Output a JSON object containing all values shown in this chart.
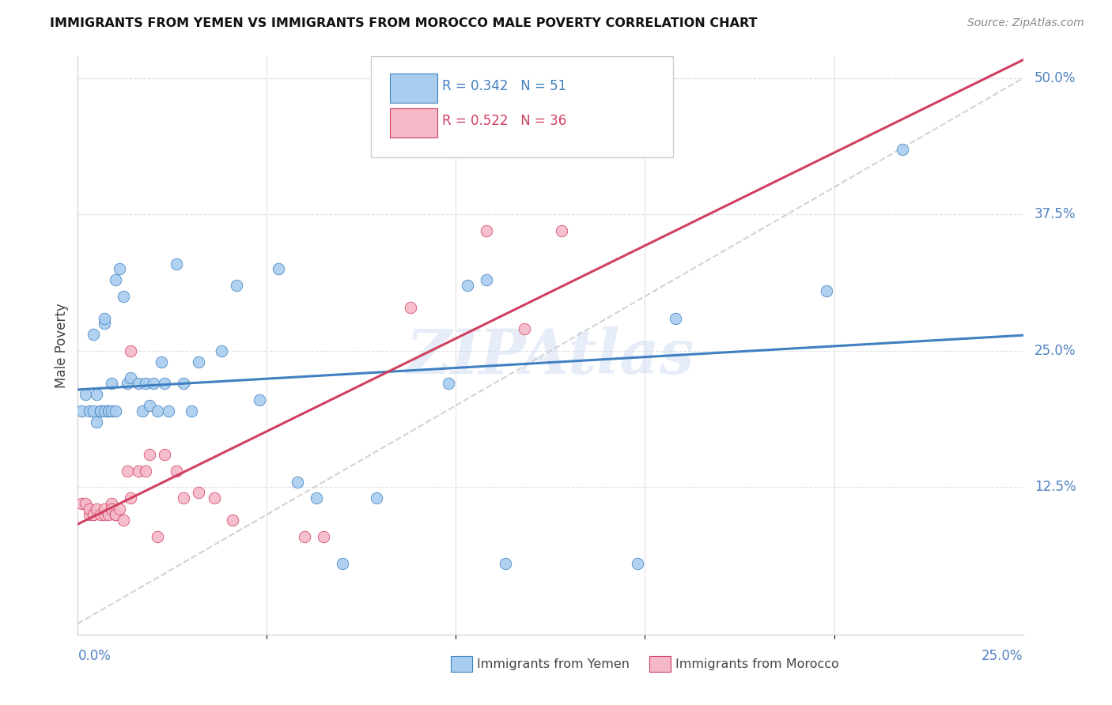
{
  "title": "IMMIGRANTS FROM YEMEN VS IMMIGRANTS FROM MOROCCO MALE POVERTY CORRELATION CHART",
  "source": "Source: ZipAtlas.com",
  "ylabel": "Male Poverty",
  "right_yticks": [
    "50.0%",
    "37.5%",
    "25.0%",
    "12.5%"
  ],
  "right_ytick_vals": [
    0.5,
    0.375,
    0.25,
    0.125
  ],
  "xlim": [
    0.0,
    0.25
  ],
  "ylim": [
    -0.01,
    0.52
  ],
  "legend_r_yemen": "R = 0.342",
  "legend_n_yemen": "N = 51",
  "legend_r_morocco": "R = 0.522",
  "legend_n_morocco": "N = 36",
  "watermark": "ZIPAtlas",
  "scatter_yemen": [
    [
      0.001,
      0.195
    ],
    [
      0.002,
      0.21
    ],
    [
      0.003,
      0.195
    ],
    [
      0.004,
      0.265
    ],
    [
      0.004,
      0.195
    ],
    [
      0.005,
      0.21
    ],
    [
      0.005,
      0.185
    ],
    [
      0.006,
      0.195
    ],
    [
      0.006,
      0.195
    ],
    [
      0.007,
      0.275
    ],
    [
      0.007,
      0.28
    ],
    [
      0.007,
      0.195
    ],
    [
      0.008,
      0.195
    ],
    [
      0.008,
      0.195
    ],
    [
      0.009,
      0.195
    ],
    [
      0.009,
      0.22
    ],
    [
      0.01,
      0.195
    ],
    [
      0.01,
      0.315
    ],
    [
      0.011,
      0.325
    ],
    [
      0.012,
      0.3
    ],
    [
      0.013,
      0.22
    ],
    [
      0.014,
      0.225
    ],
    [
      0.016,
      0.22
    ],
    [
      0.017,
      0.195
    ],
    [
      0.018,
      0.22
    ],
    [
      0.019,
      0.2
    ],
    [
      0.02,
      0.22
    ],
    [
      0.021,
      0.195
    ],
    [
      0.022,
      0.24
    ],
    [
      0.023,
      0.22
    ],
    [
      0.024,
      0.195
    ],
    [
      0.026,
      0.33
    ],
    [
      0.028,
      0.22
    ],
    [
      0.03,
      0.195
    ],
    [
      0.032,
      0.24
    ],
    [
      0.038,
      0.25
    ],
    [
      0.042,
      0.31
    ],
    [
      0.048,
      0.205
    ],
    [
      0.053,
      0.325
    ],
    [
      0.058,
      0.13
    ],
    [
      0.063,
      0.115
    ],
    [
      0.07,
      0.055
    ],
    [
      0.079,
      0.115
    ],
    [
      0.098,
      0.22
    ],
    [
      0.103,
      0.31
    ],
    [
      0.108,
      0.315
    ],
    [
      0.113,
      0.055
    ],
    [
      0.148,
      0.055
    ],
    [
      0.158,
      0.28
    ],
    [
      0.198,
      0.305
    ],
    [
      0.218,
      0.435
    ]
  ],
  "scatter_morocco": [
    [
      0.001,
      0.11
    ],
    [
      0.002,
      0.11
    ],
    [
      0.003,
      0.1
    ],
    [
      0.003,
      0.105
    ],
    [
      0.004,
      0.1
    ],
    [
      0.004,
      0.1
    ],
    [
      0.005,
      0.105
    ],
    [
      0.006,
      0.1
    ],
    [
      0.007,
      0.1
    ],
    [
      0.007,
      0.105
    ],
    [
      0.008,
      0.1
    ],
    [
      0.009,
      0.11
    ],
    [
      0.009,
      0.105
    ],
    [
      0.01,
      0.1
    ],
    [
      0.01,
      0.1
    ],
    [
      0.011,
      0.105
    ],
    [
      0.012,
      0.095
    ],
    [
      0.013,
      0.14
    ],
    [
      0.014,
      0.25
    ],
    [
      0.014,
      0.115
    ],
    [
      0.016,
      0.14
    ],
    [
      0.018,
      0.14
    ],
    [
      0.019,
      0.155
    ],
    [
      0.021,
      0.08
    ],
    [
      0.023,
      0.155
    ],
    [
      0.026,
      0.14
    ],
    [
      0.028,
      0.115
    ],
    [
      0.032,
      0.12
    ],
    [
      0.036,
      0.115
    ],
    [
      0.041,
      0.095
    ],
    [
      0.06,
      0.08
    ],
    [
      0.065,
      0.08
    ],
    [
      0.088,
      0.29
    ],
    [
      0.108,
      0.36
    ],
    [
      0.118,
      0.27
    ],
    [
      0.128,
      0.36
    ]
  ],
  "yemen_color": "#A8CDEF",
  "morocco_color": "#F5B8C8",
  "trend_yemen_color": "#4080C0",
  "trend_morocco_color": "#D04060",
  "dashed_line_color": "#C8C8C8",
  "background_color": "#FFFFFF",
  "grid_color": "#E0E0E8",
  "xtick_minor": [
    0.05,
    0.1,
    0.15,
    0.2
  ]
}
